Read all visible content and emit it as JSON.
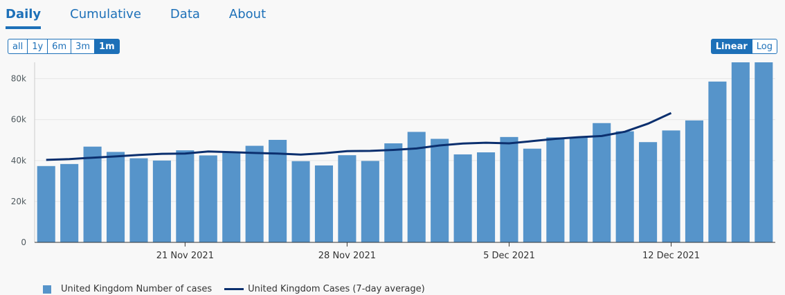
{
  "tabs": [
    {
      "label": "Daily",
      "active": true
    },
    {
      "label": "Cumulative",
      "active": false
    },
    {
      "label": "Data",
      "active": false
    },
    {
      "label": "About",
      "active": false
    }
  ],
  "range_buttons": [
    {
      "label": "all",
      "active": false
    },
    {
      "label": "1y",
      "active": false
    },
    {
      "label": "6m",
      "active": false
    },
    {
      "label": "3m",
      "active": false
    },
    {
      "label": "1m",
      "active": true
    }
  ],
  "scale_buttons": [
    {
      "label": "Linear",
      "active": true
    },
    {
      "label": "Log",
      "active": false
    }
  ],
  "colors": {
    "accent": "#1d70b8",
    "bar": "#5694ca",
    "line": "#0b2f6e"
  },
  "chart_data": {
    "type": "bar",
    "categories": [
      "15 Nov 2021",
      "16 Nov 2021",
      "17 Nov 2021",
      "18 Nov 2021",
      "19 Nov 2021",
      "20 Nov 2021",
      "21 Nov 2021",
      "22 Nov 2021",
      "23 Nov 2021",
      "24 Nov 2021",
      "25 Nov 2021",
      "26 Nov 2021",
      "27 Nov 2021",
      "28 Nov 2021",
      "29 Nov 2021",
      "30 Nov 2021",
      "1 Dec 2021",
      "2 Dec 2021",
      "3 Dec 2021",
      "4 Dec 2021",
      "5 Dec 2021",
      "6 Dec 2021",
      "7 Dec 2021",
      "8 Dec 2021",
      "9 Dec 2021",
      "10 Dec 2021",
      "11 Dec 2021",
      "12 Dec 2021",
      "13 Dec 2021",
      "14 Dec 2021",
      "15 Dec 2021",
      "16 Dec 2021"
    ],
    "x_ticks": [
      "21 Nov 2021",
      "28 Nov 2021",
      "5 Dec 2021",
      "12 Dec 2021"
    ],
    "y_ticks": [
      "0",
      "20k",
      "40k",
      "60k",
      "80k"
    ],
    "y_tick_values": [
      0,
      20000,
      40000,
      60000,
      80000
    ],
    "ylim": [
      0,
      88000
    ],
    "grid": true,
    "series": [
      {
        "name": "United Kingdom Number of cases",
        "type": "bar",
        "values": [
          37300,
          38300,
          46800,
          44200,
          41100,
          40000,
          45000,
          42500,
          44000,
          47200,
          50100,
          39700,
          37600,
          42600,
          39800,
          48400,
          54000,
          50600,
          43000,
          44000,
          51500,
          45800,
          51300,
          51300,
          58300,
          54300,
          49000,
          54700,
          59600,
          78600,
          88400,
          88400
        ]
      },
      {
        "name": "United Kingdom Cases (7-day average)",
        "type": "line",
        "values": [
          40300,
          40700,
          41400,
          42000,
          42700,
          43300,
          43400,
          44400,
          44100,
          43700,
          43400,
          42900,
          43600,
          44600,
          44700,
          45200,
          45900,
          47400,
          48300,
          48700,
          48400,
          49500,
          50600,
          51400,
          52000,
          54100,
          58000,
          63200,
          null,
          null,
          null,
          null
        ]
      }
    ],
    "legend_position": "bottom-left"
  }
}
